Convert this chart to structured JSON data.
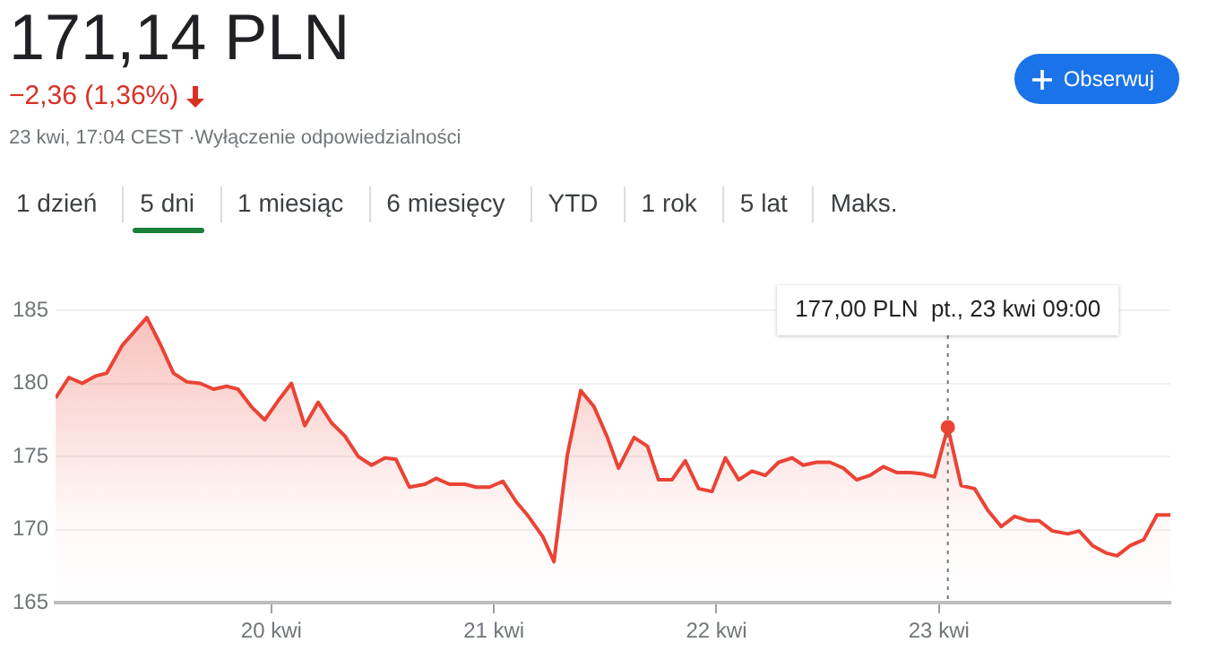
{
  "chart_data": {
    "type": "area",
    "title": "171,14 PLN",
    "subtitle": "−2,36 (1,36%)",
    "annotations": [
      "23 kwi, 17:04 CEST ·Wyłączenie odpowiedzialności",
      "Obserwuj",
      "1 dzień",
      "5 dni",
      "1 miesiąc",
      "6 miesięcy",
      "YTD",
      "1 rok",
      "5 lat",
      "Maks.",
      "177,00 PLN  pt., 23 kwi 09:00"
    ],
    "ref_lines": [
      {
        "axis": "x",
        "value": 23.04,
        "color": "#757575",
        "line_style": "dotted"
      }
    ],
    "series": [
      {
        "color": "#ea4335",
        "x": [
          19.03,
          19.09,
          19.15,
          19.21,
          19.26,
          19.33,
          19.44,
          19.5,
          19.56,
          19.62,
          19.68,
          19.74,
          19.8,
          19.85,
          19.91,
          19.97,
          20.03,
          20.09,
          20.15,
          20.21,
          20.27,
          20.33,
          20.39,
          20.45,
          20.51,
          20.56,
          20.62,
          20.69,
          20.74,
          20.8,
          20.87,
          20.92,
          20.98,
          21.04,
          21.1,
          21.15,
          21.22,
          21.27,
          21.33,
          21.39,
          21.45,
          21.51,
          21.56,
          21.63,
          21.69,
          21.74,
          21.8,
          21.86,
          21.92,
          21.98,
          22.04,
          22.1,
          22.16,
          22.22,
          22.28,
          22.34,
          22.39,
          22.45,
          22.51,
          22.57,
          22.63,
          22.69,
          22.75,
          22.81,
          22.87,
          22.93,
          22.98,
          23.04,
          23.1,
          23.16,
          23.22,
          23.28,
          23.34,
          23.4,
          23.45,
          23.51,
          23.58,
          23.63,
          23.69,
          23.75,
          23.8,
          23.86,
          23.92,
          23.98,
          24.04
        ],
        "values": [
          179.0,
          180.4,
          180.0,
          180.5,
          180.7,
          182.6,
          184.5,
          182.7,
          180.7,
          180.1,
          180.0,
          179.6,
          179.8,
          179.6,
          178.4,
          177.5,
          178.8,
          180.0,
          177.1,
          178.7,
          177.3,
          176.4,
          175.0,
          174.4,
          174.9,
          174.8,
          172.9,
          173.1,
          173.5,
          173.1,
          173.1,
          172.9,
          172.9,
          173.3,
          171.9,
          171.0,
          169.5,
          167.8,
          175.1,
          179.5,
          178.4,
          176.3,
          174.2,
          176.3,
          175.7,
          173.4,
          173.4,
          174.7,
          172.8,
          172.6,
          174.9,
          173.4,
          174.0,
          173.7,
          174.6,
          174.9,
          174.4,
          174.6,
          174.6,
          174.2,
          173.4,
          173.7,
          174.3,
          173.9,
          173.9,
          173.8,
          173.6,
          177.0,
          173.0,
          172.8,
          171.3,
          170.2,
          170.9,
          170.6,
          170.6,
          169.9,
          169.7,
          169.9,
          168.9,
          168.4,
          168.2,
          168.9,
          169.3,
          171.0,
          171.0
        ]
      }
    ],
    "xlim": [
      19.03,
      24.04
    ],
    "xticks": [
      {
        "value": 20,
        "label": "20 kwi"
      },
      {
        "value": 21,
        "label": "21 kwi"
      },
      {
        "value": 22,
        "label": "22 kwi"
      },
      {
        "value": 23,
        "label": "23 kwi"
      }
    ],
    "ylim": [
      165,
      185
    ],
    "yticks": [
      165,
      170,
      175,
      180,
      185
    ],
    "grid": "y",
    "legend": false,
    "marker": "none",
    "line_style": "solid"
  }
}
